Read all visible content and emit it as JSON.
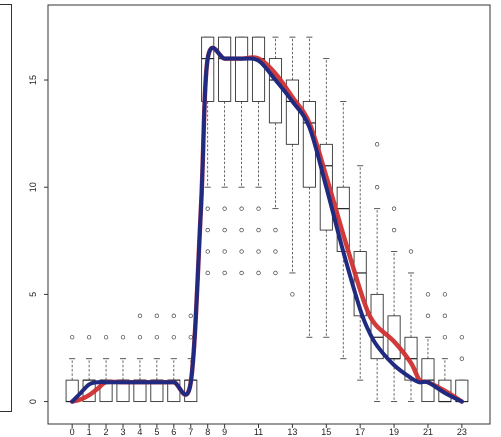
{
  "chart_data": {
    "type": "box",
    "title": "",
    "xlabel": "",
    "ylabel": "",
    "xlim": [
      -0.6,
      23.6
    ],
    "ylim": [
      -0.3,
      17.8
    ],
    "x_tick_labels": [
      "0",
      "1",
      "2",
      "3",
      "4",
      "5",
      "6",
      "7",
      "8",
      "9",
      "11",
      "13",
      "15",
      "17",
      "19",
      "21",
      "23"
    ],
    "y_tick_labels": [
      "0",
      "5",
      "10",
      "15"
    ],
    "boxes": [
      {
        "x": 0,
        "q1": 0,
        "median": 0,
        "q3": 1,
        "lower": 0,
        "upper": 2,
        "outliers": [
          3
        ]
      },
      {
        "x": 1,
        "q1": 0,
        "median": 1,
        "q3": 1,
        "lower": 0,
        "upper": 2,
        "outliers": [
          3
        ]
      },
      {
        "x": 2,
        "q1": 0,
        "median": 1,
        "q3": 1,
        "lower": 0,
        "upper": 2,
        "outliers": [
          3
        ]
      },
      {
        "x": 3,
        "q1": 0,
        "median": 1,
        "q3": 1,
        "lower": 0,
        "upper": 2,
        "outliers": [
          3
        ]
      },
      {
        "x": 4,
        "q1": 0,
        "median": 1,
        "q3": 1,
        "lower": 0,
        "upper": 2,
        "outliers": [
          3,
          4
        ]
      },
      {
        "x": 5,
        "q1": 0,
        "median": 1,
        "q3": 1,
        "lower": 0,
        "upper": 2,
        "outliers": [
          3,
          4
        ]
      },
      {
        "x": 6,
        "q1": 0,
        "median": 1,
        "q3": 1,
        "lower": 0,
        "upper": 2,
        "outliers": [
          3,
          4
        ]
      },
      {
        "x": 7,
        "q1": 0,
        "median": 1,
        "q3": 1,
        "lower": 0,
        "upper": 2,
        "outliers": [
          3,
          4
        ]
      },
      {
        "x": 8,
        "q1": 14,
        "median": 16,
        "q3": 17,
        "lower": 10,
        "upper": 17,
        "outliers": [
          6,
          7,
          8,
          9
        ]
      },
      {
        "x": 9,
        "q1": 14,
        "median": 16,
        "q3": 17,
        "lower": 10,
        "upper": 17,
        "outliers": [
          6,
          7,
          8,
          9
        ]
      },
      {
        "x": 10,
        "q1": 14,
        "median": 16,
        "q3": 17,
        "lower": 10,
        "upper": 17,
        "outliers": [
          6,
          7,
          8,
          9
        ]
      },
      {
        "x": 11,
        "q1": 14,
        "median": 16,
        "q3": 17,
        "lower": 10,
        "upper": 17,
        "outliers": [
          6,
          7,
          8,
          9
        ]
      },
      {
        "x": 12,
        "q1": 13,
        "median": 15,
        "q3": 16,
        "lower": 9,
        "upper": 17,
        "outliers": [
          6,
          7,
          8
        ]
      },
      {
        "x": 13,
        "q1": 12,
        "median": 14,
        "q3": 15,
        "lower": 6,
        "upper": 17,
        "outliers": [
          5
        ]
      },
      {
        "x": 14,
        "q1": 10,
        "median": 13,
        "q3": 14,
        "lower": 3,
        "upper": 17,
        "outliers": []
      },
      {
        "x": 15,
        "q1": 8,
        "median": 11,
        "q3": 12,
        "lower": 3,
        "upper": 16,
        "outliers": []
      },
      {
        "x": 16,
        "q1": 7,
        "median": 9,
        "q3": 10,
        "lower": 2,
        "upper": 14,
        "outliers": []
      },
      {
        "x": 17,
        "q1": 4,
        "median": 6,
        "q3": 7,
        "lower": 1,
        "upper": 11,
        "outliers": []
      },
      {
        "x": 18,
        "q1": 2,
        "median": 3,
        "q3": 5,
        "lower": 0,
        "upper": 9,
        "outliers": [
          10,
          12
        ]
      },
      {
        "x": 19,
        "q1": 2,
        "median": 2,
        "q3": 4,
        "lower": 0,
        "upper": 7,
        "outliers": [
          8,
          9
        ]
      },
      {
        "x": 20,
        "q1": 1,
        "median": 2,
        "q3": 3,
        "lower": 0,
        "upper": 6,
        "outliers": [
          7
        ]
      },
      {
        "x": 21,
        "q1": 0,
        "median": 1,
        "q3": 2,
        "lower": 0,
        "upper": 3,
        "outliers": [
          4,
          5
        ]
      },
      {
        "x": 22,
        "q1": 0,
        "median": 0,
        "q3": 1,
        "lower": 0,
        "upper": 2,
        "outliers": [
          3,
          4,
          5
        ]
      },
      {
        "x": 23,
        "q1": 0,
        "median": 0,
        "q3": 1,
        "lower": 0,
        "upper": 1,
        "outliers": [
          2,
          3
        ]
      }
    ],
    "series": [
      {
        "color": "#d03030",
        "type": "line",
        "x": [
          0,
          0.5,
          1,
          1.5,
          2,
          3,
          4,
          5,
          6,
          7,
          7.6,
          8,
          9,
          10,
          11,
          12,
          13,
          14,
          15,
          16,
          17,
          17.5,
          18,
          19,
          20,
          20.5,
          21,
          22,
          23
        ],
        "y": [
          0,
          0.1,
          0.3,
          0.6,
          0.9,
          0.9,
          0.9,
          0.9,
          0.9,
          0.9,
          9,
          16,
          16,
          16,
          16,
          15.3,
          14.2,
          13,
          10.5,
          7.8,
          5.2,
          4.1,
          3.5,
          2.8,
          1.8,
          1,
          0.9,
          0.5,
          0
        ]
      },
      {
        "color": "#1f2a80",
        "type": "line",
        "x": [
          0,
          0.5,
          1,
          1.5,
          2,
          3,
          4,
          5,
          6,
          7,
          7.6,
          8,
          9,
          10,
          11,
          12,
          13,
          14,
          15,
          16,
          17,
          17.5,
          18,
          19,
          20,
          20.5,
          21,
          22,
          23
        ],
        "y": [
          0,
          0.4,
          0.8,
          0.9,
          0.9,
          0.9,
          0.9,
          0.9,
          0.9,
          0.9,
          9,
          16,
          16,
          16,
          15.9,
          15,
          14,
          12.8,
          10,
          7,
          4.3,
          3.3,
          2.6,
          1.7,
          1.1,
          0.9,
          0.9,
          0.4,
          0
        ]
      }
    ],
    "colors": {
      "red_curve": "#d03030",
      "blue_curve": "#1f2a80",
      "box": "#333333"
    }
  }
}
